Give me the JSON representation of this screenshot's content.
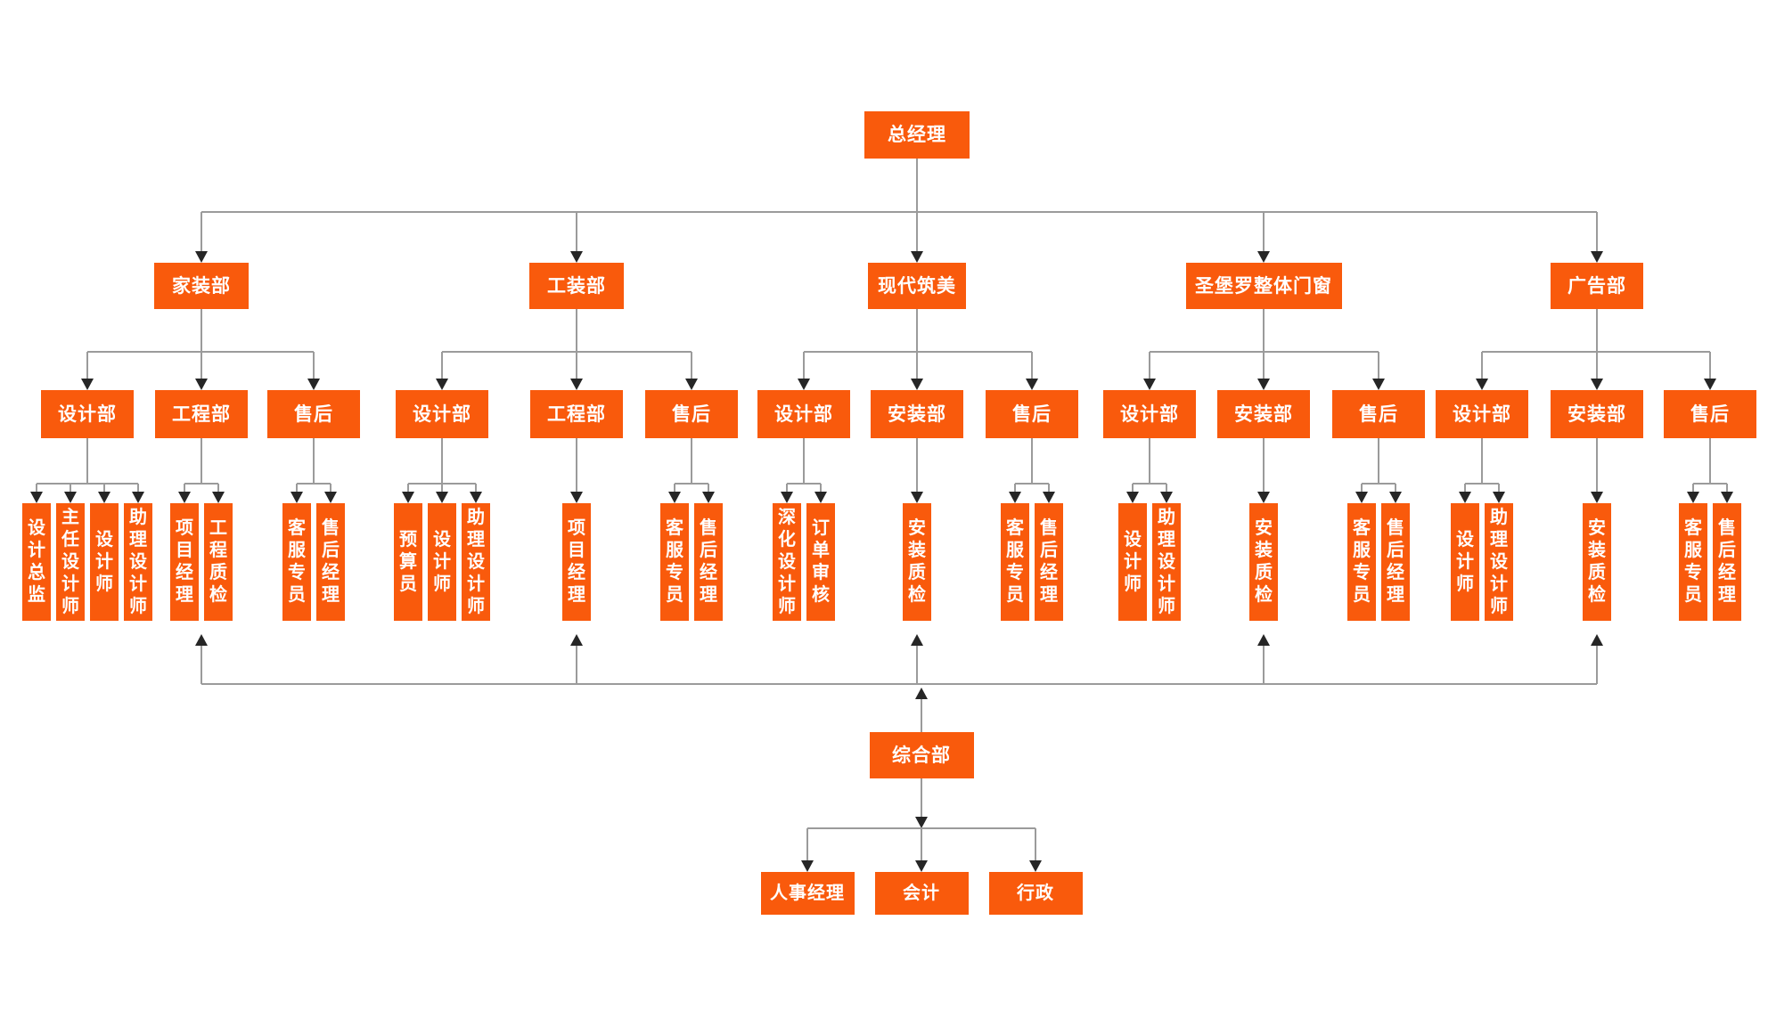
{
  "colors": {
    "box_orange": "#F95A0C",
    "connector_gray": "#9B9B9B",
    "arrow_dark": "#262626",
    "text_white": "#FFFFFF",
    "background": "#FFFFFF"
  },
  "org": {
    "root": {
      "label": "总经理"
    },
    "divisions": [
      {
        "label": "家装部",
        "departments": [
          {
            "label": "设计部",
            "roles": [
              "设计总监",
              "主任设计师",
              "设计师",
              "助理设计师"
            ]
          },
          {
            "label": "工程部",
            "roles": [
              "项目经理",
              "工程质检"
            ]
          },
          {
            "label": "售后",
            "roles": [
              "客服专员",
              "售后经理"
            ]
          }
        ]
      },
      {
        "label": "工装部",
        "departments": [
          {
            "label": "设计部",
            "roles": [
              "预算员",
              "设计师",
              "助理设计师"
            ]
          },
          {
            "label": "工程部",
            "roles": [
              "项目经理"
            ]
          },
          {
            "label": "售后",
            "roles": [
              "客服专员",
              "售后经理"
            ]
          }
        ]
      },
      {
        "label": "现代筑美",
        "departments": [
          {
            "label": "设计部",
            "roles": [
              "深化设计师",
              "订单审核"
            ]
          },
          {
            "label": "安装部",
            "roles": [
              "安装质检"
            ]
          },
          {
            "label": "售后",
            "roles": [
              "客服专员",
              "售后经理"
            ]
          }
        ]
      },
      {
        "label": "圣堡罗整体门窗",
        "departments": [
          {
            "label": "设计部",
            "roles": [
              "设计师",
              "助理设计师"
            ]
          },
          {
            "label": "安装部",
            "roles": [
              "安装质检"
            ]
          },
          {
            "label": "售后",
            "roles": [
              "客服专员",
              "售后经理"
            ]
          }
        ]
      },
      {
        "label": "广告部",
        "departments": [
          {
            "label": "设计部",
            "roles": [
              "设计师",
              "助理设计师"
            ]
          },
          {
            "label": "安装部",
            "roles": [
              "安装质检"
            ]
          },
          {
            "label": "售后",
            "roles": [
              "客服专员",
              "售后经理"
            ]
          }
        ]
      }
    ],
    "support": {
      "label": "综合部",
      "children": [
        "人事经理",
        "会计",
        "行政"
      ]
    }
  }
}
